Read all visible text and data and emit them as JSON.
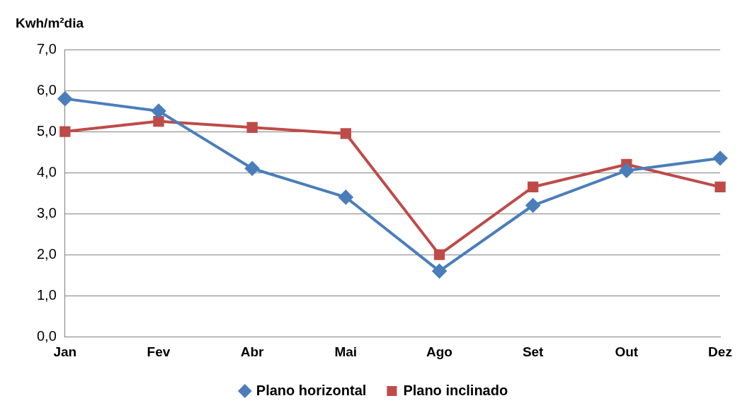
{
  "chart_data": {
    "type": "line",
    "ylabel": "Kwh/m²dia",
    "categories": [
      "Jan",
      "Fev",
      "Abr",
      "Mai",
      "Ago",
      "Set",
      "Out",
      "Dez"
    ],
    "series": [
      {
        "name": "Plano horizontal",
        "color": "#4a7ebb",
        "marker": "diamond",
        "values": [
          5.8,
          5.5,
          4.1,
          3.4,
          1.6,
          3.2,
          4.05,
          4.35
        ]
      },
      {
        "name": "Plano inclinado",
        "color": "#be4b48",
        "marker": "square",
        "values": [
          5.0,
          5.25,
          5.1,
          4.95,
          2.0,
          3.65,
          4.2,
          3.65
        ]
      }
    ],
    "ylim": [
      0,
      7
    ],
    "yticks": [
      {
        "value": 0,
        "label": "0,0"
      },
      {
        "value": 1,
        "label": "1,0"
      },
      {
        "value": 2,
        "label": "2,0"
      },
      {
        "value": 3,
        "label": "3,0"
      },
      {
        "value": 4,
        "label": "4,0"
      },
      {
        "value": 5,
        "label": "5,0"
      },
      {
        "value": 6,
        "label": "6,0"
      },
      {
        "value": 7,
        "label": "7,0"
      }
    ],
    "grid": "y",
    "legend": "bottom",
    "line_style": "solid"
  }
}
